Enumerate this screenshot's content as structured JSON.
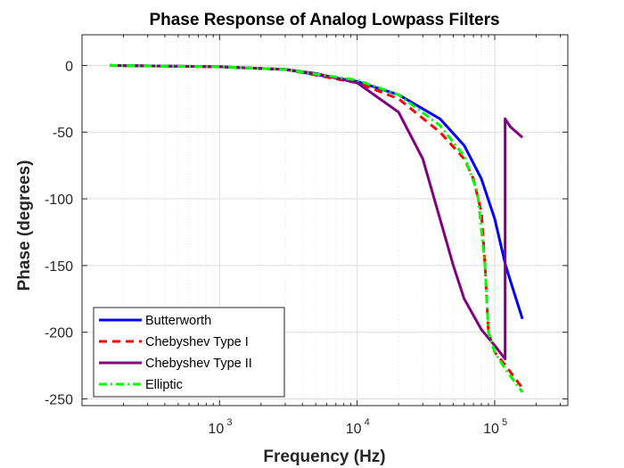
{
  "chart_data": {
    "type": "line",
    "title": "Phase Response of Analog Lowpass Filters",
    "xlabel": "Frequency (Hz)",
    "ylabel": "Phase (degrees)",
    "xscale": "log",
    "xlim": [
      100,
      340000
    ],
    "ylim": [
      -255,
      23
    ],
    "x_ticks": [
      {
        "value": 1000,
        "base": "10",
        "exp": "3"
      },
      {
        "value": 10000,
        "base": "10",
        "exp": "4"
      },
      {
        "value": 100000,
        "base": "10",
        "exp": "5"
      }
    ],
    "y_ticks": [
      {
        "value": 0,
        "label": "0"
      },
      {
        "value": -50,
        "label": "-50"
      },
      {
        "value": -100,
        "label": "-100"
      },
      {
        "value": -150,
        "label": "-150"
      },
      {
        "value": -200,
        "label": "-200"
      },
      {
        "value": -250,
        "label": "-250"
      }
    ],
    "grid": true,
    "legend_position": "bottom-left",
    "series": [
      {
        "name": "Butterworth",
        "color": "#0000ff",
        "dash": "solid",
        "points": [
          [
            159,
            0
          ],
          [
            300,
            -0.3
          ],
          [
            1000,
            -1
          ],
          [
            3000,
            -3
          ],
          [
            10000,
            -12
          ],
          [
            20000,
            -22
          ],
          [
            40000,
            -40
          ],
          [
            60000,
            -60
          ],
          [
            80000,
            -85
          ],
          [
            100000,
            -115
          ],
          [
            120000,
            -150
          ],
          [
            140000,
            -172
          ],
          [
            159000,
            -190
          ]
        ]
      },
      {
        "name": "Chebyshev Type I",
        "color": "#ff0000",
        "dash": "dashed",
        "points": [
          [
            159,
            0
          ],
          [
            1000,
            -1
          ],
          [
            3000,
            -3
          ],
          [
            10000,
            -13
          ],
          [
            20000,
            -25
          ],
          [
            40000,
            -50
          ],
          [
            60000,
            -70
          ],
          [
            70000,
            -85
          ],
          [
            80000,
            -110
          ],
          [
            85000,
            -150
          ],
          [
            90000,
            -200
          ],
          [
            100000,
            -215
          ],
          [
            120000,
            -225
          ],
          [
            159000,
            -242
          ]
        ]
      },
      {
        "name": "Chebyshev Type II",
        "color": "#800080",
        "dash": "solid",
        "points": [
          [
            159,
            0
          ],
          [
            1000,
            -1
          ],
          [
            3000,
            -3
          ],
          [
            5000,
            -6
          ],
          [
            10000,
            -13
          ],
          [
            20000,
            -35
          ],
          [
            30000,
            -70
          ],
          [
            40000,
            -115
          ],
          [
            50000,
            -150
          ],
          [
            60000,
            -175
          ],
          [
            80000,
            -198
          ],
          [
            100000,
            -210
          ],
          [
            119000,
            -220
          ],
          [
            119000,
            -40
          ],
          [
            130000,
            -46
          ],
          [
            159000,
            -54
          ]
        ]
      },
      {
        "name": "Elliptic",
        "color": "#00ff00",
        "dash": "dashdot",
        "points": [
          [
            159,
            0
          ],
          [
            1000,
            -1
          ],
          [
            3000,
            -3
          ],
          [
            10000,
            -11
          ],
          [
            20000,
            -22
          ],
          [
            40000,
            -45
          ],
          [
            60000,
            -68
          ],
          [
            75000,
            -95
          ],
          [
            85000,
            -150
          ],
          [
            90000,
            -200
          ],
          [
            100000,
            -215
          ],
          [
            120000,
            -228
          ],
          [
            159000,
            -245
          ]
        ]
      }
    ]
  }
}
